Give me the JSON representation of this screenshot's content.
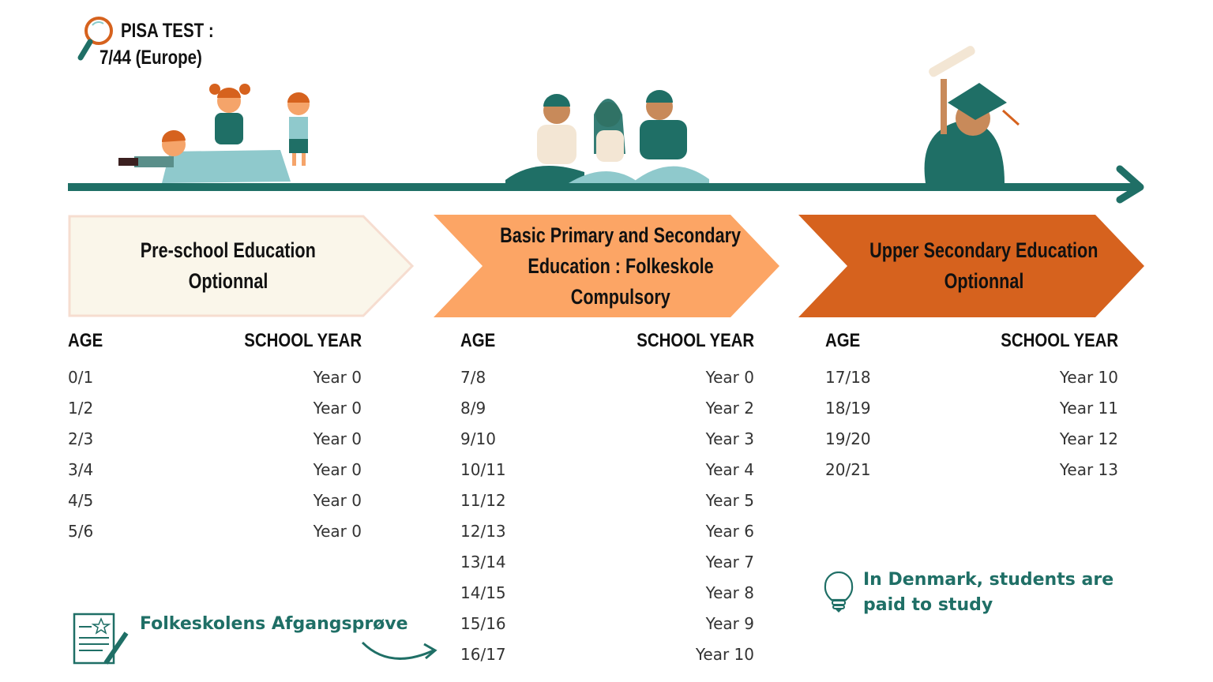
{
  "colors": {
    "teal": "#1f6f66",
    "cream": "#faf6ea",
    "light_orange": "#fca565",
    "dark_orange": "#d6621e"
  },
  "pisa": {
    "line1": "PISA TEST :",
    "line2": "7/44 (Europe)",
    "icon": "magnifying-glass-icon"
  },
  "stages": [
    {
      "line1": "Pre-school Education",
      "line2": "Optionnal",
      "headers": {
        "age": "AGE",
        "year": "SCHOOL YEAR"
      },
      "rows": [
        {
          "age": "0/1",
          "year": "Year 0"
        },
        {
          "age": "1/2",
          "year": "Year 0"
        },
        {
          "age": "2/3",
          "year": "Year 0"
        },
        {
          "age": "3/4",
          "year": "Year 0"
        },
        {
          "age": "4/5",
          "year": "Year 0"
        },
        {
          "age": "5/6",
          "year": "Year 0"
        }
      ]
    },
    {
      "line1": "Basic Primary and Secondary",
      "line2": "Education : Folkeskole",
      "line3": "Compulsory",
      "headers": {
        "age": "AGE",
        "year": "SCHOOL YEAR"
      },
      "rows": [
        {
          "age": "7/8",
          "year": "Year 0"
        },
        {
          "age": "8/9",
          "year": "Year 2"
        },
        {
          "age": "9/10",
          "year": "Year 3"
        },
        {
          "age": "10/11",
          "year": "Year 4"
        },
        {
          "age": "11/12",
          "year": "Year 5"
        },
        {
          "age": "12/13",
          "year": "Year 6"
        },
        {
          "age": "13/14",
          "year": "Year 7"
        },
        {
          "age": "14/15",
          "year": "Year 8"
        },
        {
          "age": "15/16",
          "year": "Year 9"
        },
        {
          "age": "16/17",
          "year": "Year 10"
        }
      ]
    },
    {
      "line1": "Upper Secondary Education",
      "line2": "Optionnal",
      "headers": {
        "age": "AGE",
        "year": "SCHOOL YEAR"
      },
      "rows": [
        {
          "age": "17/18",
          "year": "Year 10"
        },
        {
          "age": "18/19",
          "year": "Year 11"
        },
        {
          "age": "19/20",
          "year": "Year 12"
        },
        {
          "age": "20/21",
          "year": "Year 13"
        }
      ]
    }
  ],
  "exam": {
    "label": "Folkeskolens Afgangsprøve",
    "icon": "certificate-icon"
  },
  "note": {
    "line1": "In Denmark, students are",
    "line2": "paid to study",
    "icon": "lightbulb-icon"
  }
}
